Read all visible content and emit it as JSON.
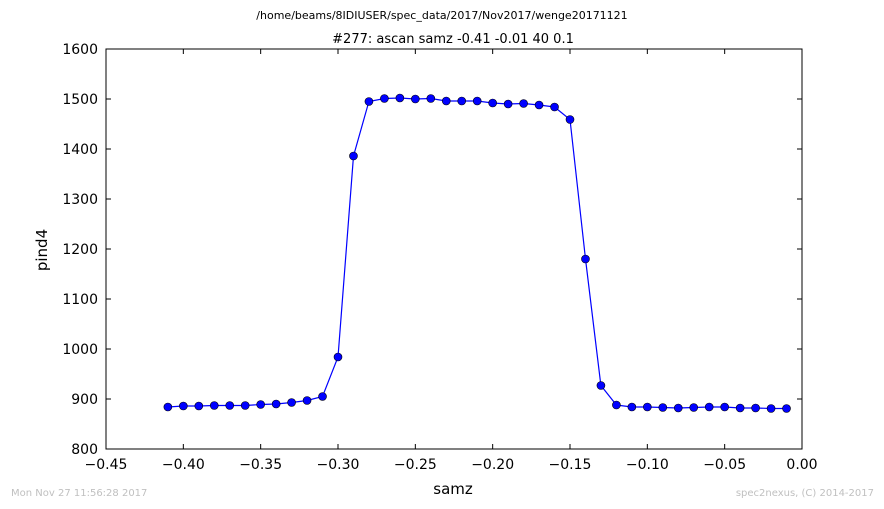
{
  "header": {
    "file_path": "/home/beams/8IDIUSER/spec_data/2017/Nov2017/wenge20171121"
  },
  "footer": {
    "timestamp": "Mon Nov 27 11:56:28 2017",
    "credit": "spec2nexus, (C) 2014-2017"
  },
  "chart_data": {
    "type": "line",
    "title": "#277: ascan  samz -0.41 -0.01  40 0.1",
    "xlabel": "samz",
    "ylabel": "pind4",
    "xlim": [
      -0.45,
      0.0
    ],
    "ylim": [
      800,
      1600
    ],
    "xticks": [
      "−0.45",
      "−0.40",
      "−0.35",
      "−0.30",
      "−0.25",
      "−0.20",
      "−0.15",
      "−0.10",
      "−0.05",
      "0.00"
    ],
    "yticks": [
      "800",
      "900",
      "1000",
      "1100",
      "1200",
      "1300",
      "1400",
      "1500",
      "1600"
    ],
    "grid": false,
    "line_color": "#0000ff",
    "marker_color": "#0000ff",
    "series": [
      {
        "x": [
          -0.41,
          -0.4,
          -0.39,
          -0.38,
          -0.37,
          -0.36,
          -0.35,
          -0.34,
          -0.33,
          -0.32,
          -0.31,
          -0.3,
          -0.29,
          -0.28,
          -0.27,
          -0.26,
          -0.25,
          -0.24,
          -0.23,
          -0.22,
          -0.21,
          -0.2,
          -0.19,
          -0.18,
          -0.17,
          -0.16,
          -0.15,
          -0.14,
          -0.13,
          -0.12,
          -0.11,
          -0.1,
          -0.09,
          -0.08,
          -0.07,
          -0.06,
          -0.05,
          -0.04,
          -0.03,
          -0.02,
          -0.01
        ],
        "y": [
          884,
          886,
          886,
          887,
          887,
          887,
          889,
          890,
          893,
          897,
          905,
          984,
          1386,
          1495,
          1501,
          1502,
          1500,
          1501,
          1496,
          1496,
          1496,
          1492,
          1490,
          1491,
          1488,
          1484,
          1459,
          1180,
          927,
          888,
          884,
          884,
          883,
          882,
          883,
          884,
          884,
          882,
          882,
          881,
          881
        ]
      }
    ]
  }
}
